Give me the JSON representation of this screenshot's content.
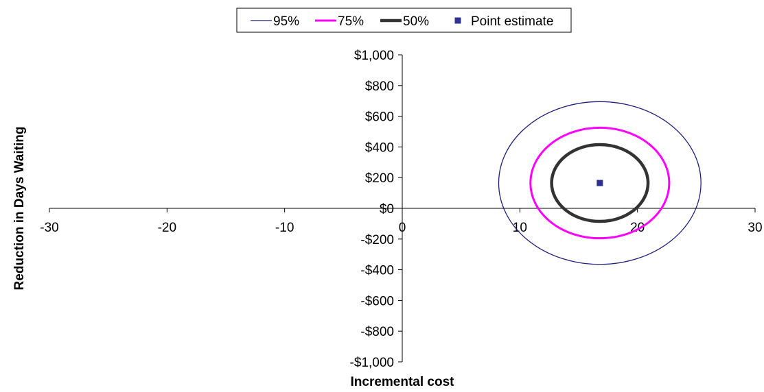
{
  "chart_data": {
    "type": "scatter",
    "title": "",
    "xlabel": "Incremental cost",
    "ylabel": "Reduction in Days Waiting",
    "xlim": [
      -30,
      30
    ],
    "ylim": [
      -1000,
      1000
    ],
    "x_ticks": [
      -30,
      -20,
      -10,
      0,
      10,
      20,
      30
    ],
    "x_tick_labels": [
      "-30",
      "-20",
      "-10",
      "0",
      "10",
      "20",
      "30"
    ],
    "y_ticks": [
      1000,
      800,
      600,
      400,
      200,
      0,
      -200,
      -400,
      -600,
      -800,
      -1000
    ],
    "y_tick_labels": [
      "$1,000",
      "$800",
      "$600",
      "$400",
      "$200",
      "$0",
      "-$200",
      "-$400",
      "-$600",
      "-$800",
      "-$1,000"
    ],
    "grid": false,
    "legend_position": "top",
    "series": [
      {
        "name": "95%",
        "kind": "ellipse",
        "center": [
          16.8,
          165
        ],
        "x_radius": 8.6,
        "y_radius": 530,
        "color": "#1f1f7a"
      },
      {
        "name": "75%",
        "kind": "ellipse",
        "center": [
          16.8,
          165
        ],
        "x_radius": 5.9,
        "y_radius": 360,
        "color": "#ff00ff"
      },
      {
        "name": "50%",
        "kind": "ellipse",
        "center": [
          16.8,
          165
        ],
        "x_radius": 4.1,
        "y_radius": 250,
        "color": "#333333"
      },
      {
        "name": "Point estimate",
        "kind": "point",
        "x": 16.8,
        "y": 165,
        "color": "#2e3192"
      }
    ]
  }
}
